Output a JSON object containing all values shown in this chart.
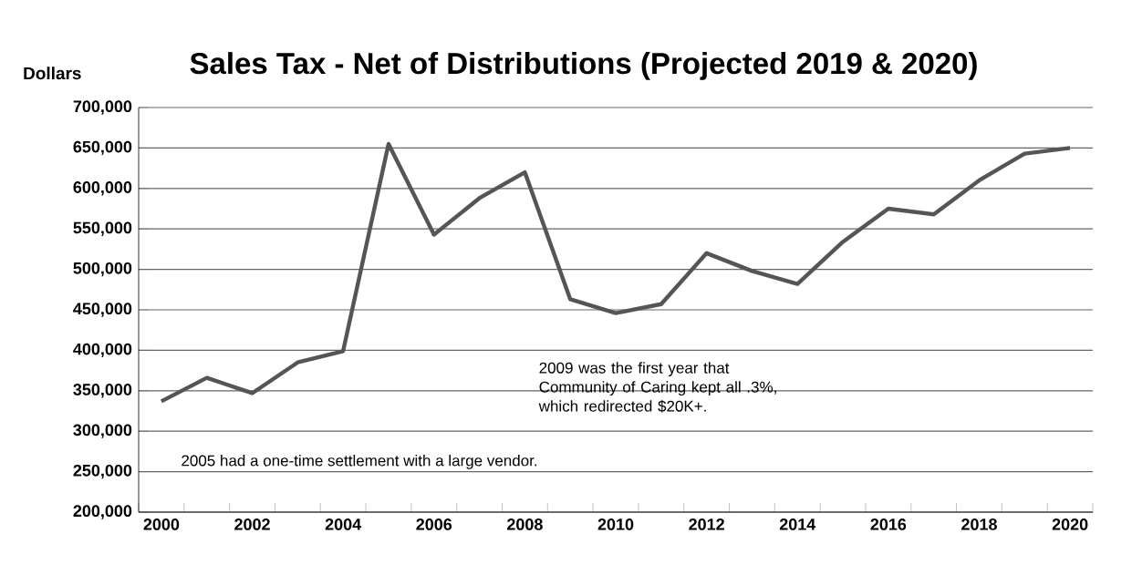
{
  "chart_data": {
    "type": "line",
    "title": "Sales Tax - Net of Distributions (Projected 2019 & 2020)",
    "ylabel": "Dollars",
    "categories": [
      "2000",
      null,
      "2002",
      null,
      "2004",
      null,
      "2006",
      null,
      "2008",
      null,
      "2010",
      null,
      "2012",
      null,
      "2014",
      null,
      "2016",
      null,
      "2018",
      null,
      "2020"
    ],
    "series": [
      {
        "color": "#555555",
        "values": [
          337000,
          366000,
          347000,
          385000,
          399000,
          655000,
          543000,
          588000,
          620000,
          463000,
          446000,
          457000,
          520000,
          498000,
          482000,
          534000,
          575000,
          568000,
          610000,
          643000,
          650000
        ]
      }
    ],
    "ylim": [
      200000,
      700000
    ],
    "yticks": [
      {
        "value": 200000,
        "label": "200,000"
      },
      {
        "value": 250000,
        "label": "250,000"
      },
      {
        "value": 300000,
        "label": "300,000"
      },
      {
        "value": 350000,
        "label": "350,000"
      },
      {
        "value": 400000,
        "label": "400,000"
      },
      {
        "value": 450000,
        "label": "450,000"
      },
      {
        "value": 500000,
        "label": "500,000"
      },
      {
        "value": 550000,
        "label": "550,000"
      },
      {
        "value": 600000,
        "label": "600,000"
      },
      {
        "value": 650000,
        "label": "650,000"
      },
      {
        "value": 700000,
        "label": "700,000"
      }
    ],
    "grid": "y",
    "marker": "none",
    "line_style": "solid",
    "annotations": [
      "2009 was the first year that Community of Caring kept all .3%, which redirected $20K+.",
      "2005 had a one-time settlement with a large vendor."
    ]
  }
}
